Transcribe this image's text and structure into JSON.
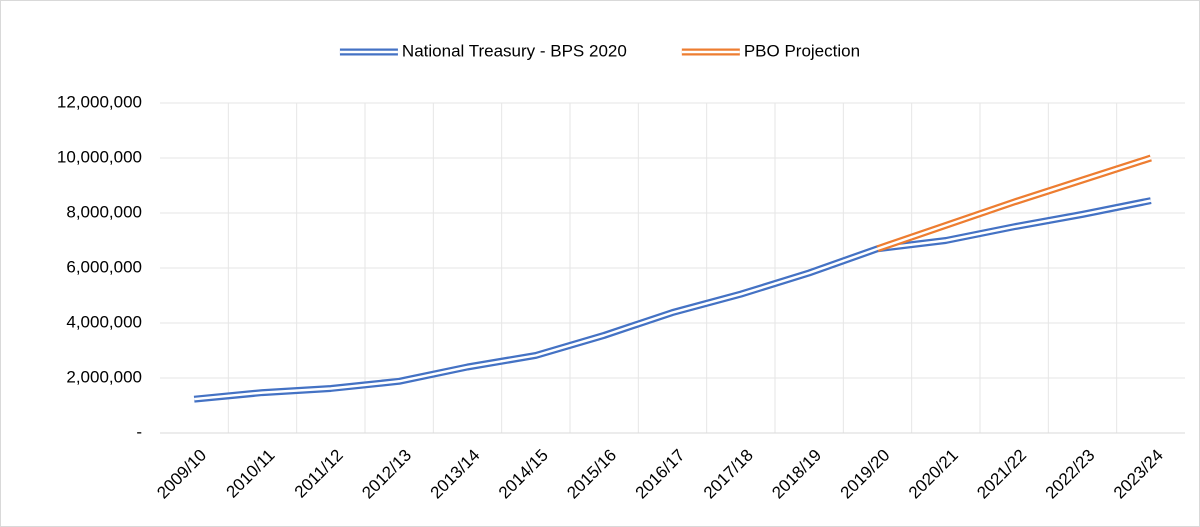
{
  "chart_data": {
    "type": "line",
    "categories": [
      "2009/10",
      "2010/11",
      "2011/12",
      "2012/13",
      "2013/14",
      "2014/15",
      "2015/16",
      "2016/17",
      "2017/18",
      "2018/19",
      "2019/20",
      "2020/21",
      "2021/22",
      "2022/23",
      "2023/24"
    ],
    "series": [
      {
        "name": "National Treasury - BPS 2020",
        "color": "#4472c4",
        "values": [
          1230000,
          1470000,
          1620000,
          1880000,
          2400000,
          2820000,
          3550000,
          4380000,
          5050000,
          5820000,
          6700000,
          7000000,
          7500000,
          7950000,
          8450000
        ]
      },
      {
        "name": "PBO Projection",
        "color": "#ed7d31",
        "values": [
          null,
          null,
          null,
          null,
          null,
          null,
          null,
          null,
          null,
          null,
          6700000,
          7550000,
          8400000,
          9200000,
          10000000
        ]
      }
    ],
    "ylim": [
      0,
      12000000
    ],
    "yticks": [
      {
        "value": 0,
        "label": "-"
      },
      {
        "value": 2000000,
        "label": "2,000,000"
      },
      {
        "value": 4000000,
        "label": "4,000,000"
      },
      {
        "value": 6000000,
        "label": "6,000,000"
      },
      {
        "value": 8000000,
        "label": "8,000,000"
      },
      {
        "value": 10000000,
        "label": "10,000,000"
      },
      {
        "value": 12000000,
        "label": "12,000,000"
      }
    ],
    "grid": true,
    "legend": "top"
  }
}
